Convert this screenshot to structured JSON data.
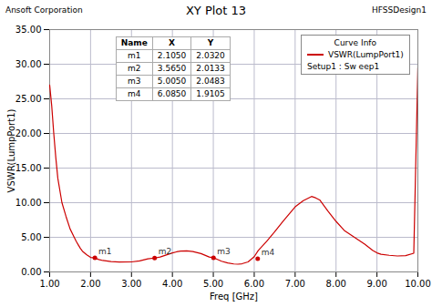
{
  "chart_data": {
    "type": "line",
    "title": "XY Plot 13",
    "annotations": [
      "Ansoft Corporation",
      "HFSSDesign1"
    ],
    "xlabel": "Freq [GHz]",
    "ylabel": "VSWR(LumpPort1)",
    "x": [
      1.0,
      1.05,
      1.1,
      1.15,
      1.2,
      1.3,
      1.4,
      1.5,
      1.6,
      1.65,
      1.7,
      1.75,
      1.8,
      1.9,
      2.0,
      2.1,
      2.2,
      2.3,
      2.5,
      2.7,
      3.0,
      3.2,
      3.4,
      3.56,
      3.7,
      3.9,
      4.0,
      4.1,
      4.2,
      4.35,
      4.5,
      4.7,
      4.9,
      5.0,
      5.1,
      5.2,
      5.35,
      5.5,
      5.6,
      5.7,
      5.85,
      6.0,
      6.1,
      6.3,
      6.5,
      6.7,
      7.0,
      7.2,
      7.4,
      7.5,
      7.6,
      7.8,
      8.0,
      8.2,
      8.5,
      8.7,
      8.9,
      9.0,
      9.1,
      9.3,
      9.5,
      9.7,
      9.9,
      10.0
    ],
    "series": [
      {
        "name": "VSWR(LumpPort1)",
        "color": "#cc0000",
        "values": [
          27.0,
          24.0,
          20.0,
          16.5,
          13.5,
          10.0,
          8.0,
          6.2,
          5.0,
          4.4,
          3.9,
          3.4,
          3.0,
          2.5,
          2.1,
          2.03,
          1.8,
          1.65,
          1.5,
          1.42,
          1.45,
          1.6,
          1.9,
          2.01,
          2.15,
          2.55,
          2.75,
          2.9,
          3.0,
          3.05,
          2.95,
          2.65,
          2.15,
          2.05,
          1.8,
          1.55,
          1.3,
          1.15,
          1.12,
          1.18,
          1.45,
          2.2,
          3.1,
          4.4,
          5.8,
          7.3,
          9.4,
          10.3,
          10.9,
          10.7,
          10.4,
          8.8,
          7.3,
          6.0,
          4.8,
          4.0,
          3.1,
          2.75,
          2.55,
          2.4,
          2.3,
          2.35,
          2.7,
          29.5
        ]
      }
    ],
    "xlim": [
      1.0,
      10.0
    ],
    "ylim": [
      0.0,
      35.0
    ],
    "xticks": [
      {
        "value": 1,
        "label": "1.00"
      },
      {
        "value": 2,
        "label": "2.00"
      },
      {
        "value": 3,
        "label": "3.00"
      },
      {
        "value": 4,
        "label": "4.00"
      },
      {
        "value": 5,
        "label": "5.00"
      },
      {
        "value": 6,
        "label": "6.00"
      },
      {
        "value": 7,
        "label": "7.00"
      },
      {
        "value": 8,
        "label": "8.00"
      },
      {
        "value": 9,
        "label": "9.00"
      },
      {
        "value": 10,
        "label": "10.00"
      }
    ],
    "yticks": [
      {
        "value": 0,
        "label": "0.00"
      },
      {
        "value": 5,
        "label": "5.00"
      },
      {
        "value": 10,
        "label": "10.00"
      },
      {
        "value": 15,
        "label": "15.00"
      },
      {
        "value": 20,
        "label": "20.00"
      },
      {
        "value": 25,
        "label": "25.00"
      },
      {
        "value": 30,
        "label": "30.00"
      },
      {
        "value": 35,
        "label": "35.00"
      }
    ],
    "grid": true,
    "legend": "upper right",
    "legend_title": "Curve Info",
    "legend_note": "Setup1 : Sw eep1",
    "table_headers": [
      "Name",
      "X",
      "Y"
    ],
    "markers": {
      "names": [
        "m1",
        "m2",
        "m3",
        "m4"
      ],
      "x": [
        2.105,
        3.565,
        5.005,
        6.085
      ],
      "y": [
        2.032,
        2.0133,
        2.0483,
        1.9105
      ],
      "x_labels": [
        "2.1050",
        "3.5650",
        "5.0050",
        "6.0850"
      ],
      "y_labels": [
        "2.0320",
        "2.0133",
        "2.0483",
        "1.9105"
      ]
    }
  }
}
